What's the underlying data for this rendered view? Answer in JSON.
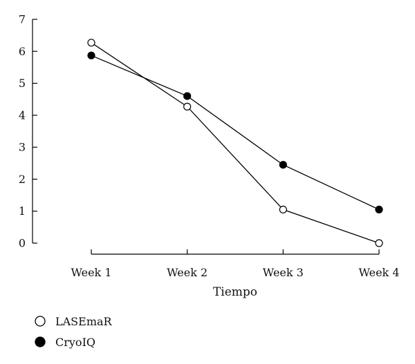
{
  "chart_data": {
    "type": "line",
    "title": "",
    "xlabel": "Tiempo",
    "ylabel": "",
    "categories": [
      "Week 1",
      "Week 2",
      "Week 3",
      "Week 4"
    ],
    "ylim": [
      0,
      7
    ],
    "yticks": [
      0,
      1,
      2,
      3,
      4,
      5,
      6,
      7
    ],
    "grid": false,
    "legend_position": "bottom-left",
    "series": [
      {
        "name": "LASEmaR",
        "values": [
          6.27,
          4.27,
          1.05,
          0.0
        ],
        "marker": "open-circle",
        "color": "#000000"
      },
      {
        "name": "CryoIQ",
        "values": [
          5.87,
          4.6,
          2.45,
          1.05
        ],
        "marker": "filled-circle",
        "color": "#000000"
      }
    ]
  }
}
